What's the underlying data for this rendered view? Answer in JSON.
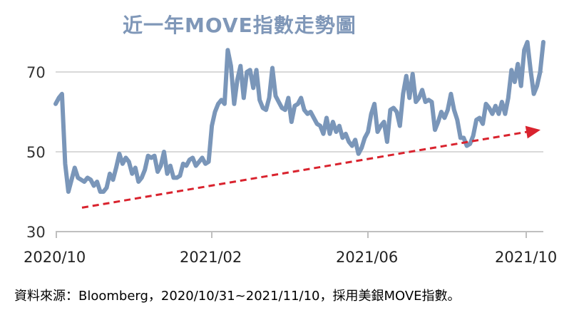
{
  "chart_data": {
    "type": "line",
    "title": "近一年MOVE指數走勢圖",
    "xlabel": "",
    "ylabel": "",
    "x_tick_labels": [
      "2020/10",
      "2021/02",
      "2021/06",
      "2021/10"
    ],
    "y_ticks": [
      30,
      50,
      70
    ],
    "ylim": [
      30,
      78
    ],
    "grid": true,
    "legend": "none",
    "colors": {
      "series": "#7a96b9",
      "trend": "#d9232e",
      "grid": "#d9d9d9",
      "axis": "#bfbfbf"
    },
    "series": [
      {
        "values": [
          62,
          63.5,
          64.5,
          47,
          40,
          43,
          46,
          43.5,
          43,
          42.5,
          43.5,
          43,
          41.5,
          42.5,
          40,
          40,
          41,
          44.5,
          43,
          46,
          49.5,
          47,
          48.5,
          47.5,
          44.5,
          46,
          42.5,
          43.5,
          45.5,
          49,
          48.5,
          49,
          45,
          46.5,
          50,
          44.5,
          46.5,
          43.5,
          43.5,
          44,
          47,
          46.5,
          48,
          48.5,
          46.5,
          47.5,
          48.5,
          47,
          47.5,
          56.5,
          60,
          62,
          63,
          62,
          75.5,
          71.5,
          62,
          68,
          71.5,
          63.5,
          70,
          70.5,
          66,
          70.5,
          63,
          61,
          60.5,
          63.5,
          71,
          64,
          62.5,
          61,
          60.5,
          63.5,
          57.5,
          61.5,
          62,
          63.5,
          60.5,
          59.5,
          60,
          58.5,
          57,
          56.5,
          54.5,
          58.5,
          54.5,
          57.5,
          55,
          56.5,
          53.5,
          54.5,
          52.5,
          51.5,
          53,
          49.5,
          51,
          53.5,
          55,
          59.5,
          62,
          55,
          56.5,
          57.5,
          52.5,
          60.5,
          61,
          60,
          56.5,
          64.5,
          69,
          63.5,
          69.5,
          62.5,
          63.5,
          65.5,
          62.5,
          63,
          62.5,
          55.5,
          57.5,
          60,
          58.5,
          60.5,
          64.5,
          60.5,
          58,
          53.5,
          53.5,
          51.5,
          52,
          54,
          58,
          58.5,
          57,
          62,
          61,
          59.5,
          61.5,
          59.5,
          62.5,
          59.5,
          63.5,
          70.5,
          67.5,
          72,
          66.5,
          75.5,
          77.5,
          70.5,
          64.5,
          66.5,
          70,
          77.5
        ]
      }
    ],
    "trend": {
      "start": 36,
      "end": 55.5
    }
  },
  "source": "資料來源：Bloomberg，2020/10/31~2021/11/10，採用美銀MOVE指數。"
}
